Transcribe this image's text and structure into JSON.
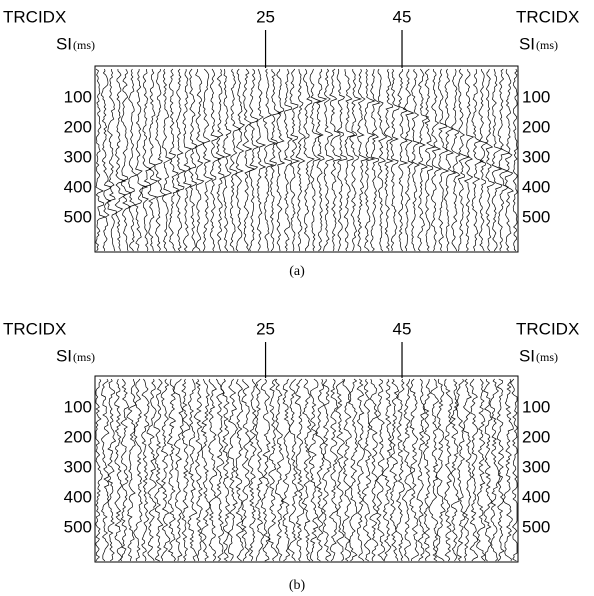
{
  "panels": [
    {
      "x_axis_label": "TRCIDX",
      "y_axis_label": "SI",
      "y_axis_unit": "(ms)",
      "xlim": [
        0,
        62
      ],
      "xticks": [
        25,
        45
      ],
      "ylim": [
        0,
        613
      ],
      "yticks": [
        100,
        200,
        300,
        400,
        500
      ],
      "caption": "(a)"
    },
    {
      "x_axis_label": "TRCIDX",
      "y_axis_label": "SI",
      "y_axis_unit": "(ms)",
      "xlim": [
        0,
        62
      ],
      "xticks": [
        25,
        45
      ],
      "ylim": [
        0,
        613
      ],
      "yticks": [
        100,
        200,
        300,
        400,
        500
      ],
      "caption": "(b)"
    }
  ]
}
